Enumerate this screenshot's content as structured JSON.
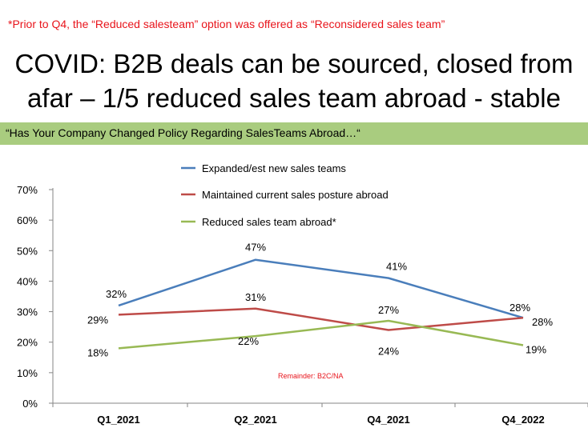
{
  "footnote": "*Prior to Q4, the “Reduced salesteam” option was offered as “Reconsidered sales team”",
  "title": {
    "line1": "COVID: B2B deals can be sourced, closed from",
    "line2": "afar – 1/5 reduced sales team abroad - stable"
  },
  "question": "“Has Your Company Changed Policy Regarding SalesTeams Abroad…“",
  "colors": {
    "expanded": "#4a7ebb",
    "maintained": "#be4b48",
    "reduced": "#98b954",
    "footnote": "#e8141b",
    "band": "#a9cc7f"
  },
  "chart_data": {
    "type": "line",
    "categories": [
      "Q1_2021",
      "Q2_2021",
      "Q4_2021",
      "Q4_2022"
    ],
    "ylim": [
      0,
      70
    ],
    "yticks": [
      "0%",
      "10%",
      "20%",
      "30%",
      "40%",
      "50%",
      "60%",
      "70%"
    ],
    "grid": false,
    "legend": "top",
    "series": [
      {
        "name": "Expanded/est new sales teams",
        "values": [
          32,
          47,
          41,
          28
        ],
        "labels": [
          "32%",
          "47%",
          "41%",
          "28%"
        ],
        "color": "#4a7ebb"
      },
      {
        "name": "Maintained current sales posture abroad",
        "values": [
          29,
          31,
          24,
          28
        ],
        "labels": [
          "29%",
          "31%",
          "24%",
          "28%"
        ],
        "color": "#be4b48"
      },
      {
        "name": "Reduced sales team abroad*",
        "values": [
          18,
          22,
          27,
          19
        ],
        "labels": [
          "18%",
          "22%",
          "27%",
          "19%"
        ],
        "color": "#98b954"
      }
    ],
    "annotation": "Remainder:  B2C/NA"
  }
}
